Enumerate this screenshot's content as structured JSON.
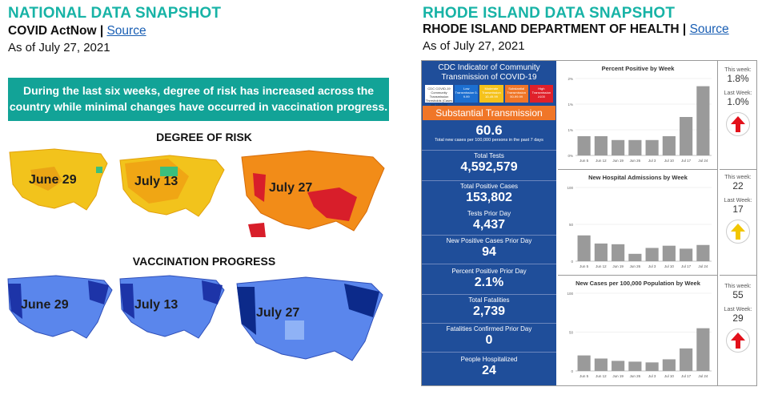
{
  "national": {
    "title": "NATIONAL DATA SNAPSHOT",
    "source_prefix": "COVID ActNow | ",
    "source_link": "Source",
    "date": "As of July 27, 2021",
    "banner": "During the last six weeks, degree of risk has increased across the country while minimal changes have occurred in vaccination progress.",
    "risk_heading": "DEGREE OF RISK",
    "vax_heading": "VACCINATION PROGRESS",
    "risk_maps": [
      {
        "label": "June 29",
        "fill": "#f2c31c"
      },
      {
        "label": "July 13",
        "fill": "#f0a614"
      },
      {
        "label": "July 27",
        "fill": "#f28c18"
      }
    ],
    "vax_maps": [
      {
        "label": "June 29",
        "fill": "#3d62d8"
      },
      {
        "label": "July 13",
        "fill": "#3352cc"
      },
      {
        "label": "July 27",
        "fill": "#2a44bd"
      }
    ]
  },
  "rhode_island": {
    "title": "RHODE ISLAND DATA SNAPSHOT",
    "source_prefix": "RHODE ISLAND DEPARTMENT OF HEALTH | ",
    "source_link": "Source",
    "date": "As of July 27, 2021",
    "cdc_title": "CDC Indicator of Community Transmission of COVID-19",
    "transmission_level": "Substantial Transmission",
    "legend": [
      {
        "text": "CDC COVID-19 Community Transmission Thresholds (Cases per 100,000 Population)",
        "color": "#ffffff"
      },
      {
        "text": "Low Transmission 0-9.99",
        "color": "#1c6fd1"
      },
      {
        "text": "Moderate Transmission 10-49.99",
        "color": "#f5c21b"
      },
      {
        "text": "Substantial Transmission 50-99.99",
        "color": "#f07628"
      },
      {
        "text": "High Transmission ≥100",
        "color": "#e0202a"
      }
    ],
    "cases_value": "60.6",
    "cases_note": "Total new cases per 100,000 persons in the past 7 days",
    "stats": [
      {
        "label": "Total Tests",
        "value": "4,592,579"
      },
      {
        "label": "Total Positive Cases",
        "value": "153,802"
      },
      {
        "label": "Tests Prior Day",
        "value": "4,437"
      },
      {
        "label": "New Positive Cases Prior Day",
        "value": "94"
      },
      {
        "label": "Percent Positive Prior Day",
        "value": "2.1%"
      },
      {
        "label": "Total Fatalities",
        "value": "2,739"
      },
      {
        "label": "Fatalities Confirmed Prior Day",
        "value": "0"
      },
      {
        "label": "People Hospitalized",
        "value": "24"
      }
    ],
    "side": [
      {
        "this_label": "This week:",
        "this_value": "1.8%",
        "last_label": "Last Week:",
        "last_value": "1.0%",
        "arrow_color": "#e3111b",
        "arrow": "up-arrow-icon"
      },
      {
        "this_label": "This week:",
        "this_value": "22",
        "last_label": "Last Week:",
        "last_value": "17",
        "arrow_color": "#f2c600",
        "arrow": "up-arrow-icon"
      },
      {
        "this_label": "This week:",
        "this_value": "55",
        "last_label": "Last Week:",
        "last_value": "29",
        "arrow_color": "#e3111b",
        "arrow": "up-arrow-icon"
      }
    ]
  },
  "chart_data": [
    {
      "type": "bar",
      "title": "Percent Positive by Week",
      "categories": [
        "Jun 5",
        "Jun 12",
        "Jun 19",
        "Jun 26",
        "Jul 3",
        "Jul 10",
        "Jul 17",
        "Jul 24"
      ],
      "values": [
        0.5,
        0.5,
        0.4,
        0.4,
        0.4,
        0.5,
        1.0,
        1.8
      ],
      "ylim": [
        0,
        2
      ],
      "yticks": [
        "0%",
        "1%",
        "1%",
        "2%"
      ]
    },
    {
      "type": "bar",
      "title": "New Hospital Admissions by Week",
      "categories": [
        "Jun 5",
        "Jun 12",
        "Jun 19",
        "Jun 26",
        "Jul 3",
        "Jul 10",
        "Jul 17",
        "Jul 24"
      ],
      "values": [
        35,
        24,
        23,
        10,
        18,
        21,
        17,
        22
      ],
      "ylim": [
        0,
        100
      ],
      "yticks": [
        "0",
        "50",
        "100"
      ]
    },
    {
      "type": "bar",
      "title": "New Cases per 100,000 Population by Week",
      "categories": [
        "Jun 5",
        "Jun 12",
        "Jun 19",
        "Jun 26",
        "Jul 3",
        "Jul 10",
        "Jul 17",
        "Jul 24"
      ],
      "values": [
        20,
        16,
        13,
        12,
        11,
        15,
        29,
        55
      ],
      "ylim": [
        0,
        100
      ],
      "yticks": [
        "0",
        "50",
        "100"
      ]
    }
  ]
}
